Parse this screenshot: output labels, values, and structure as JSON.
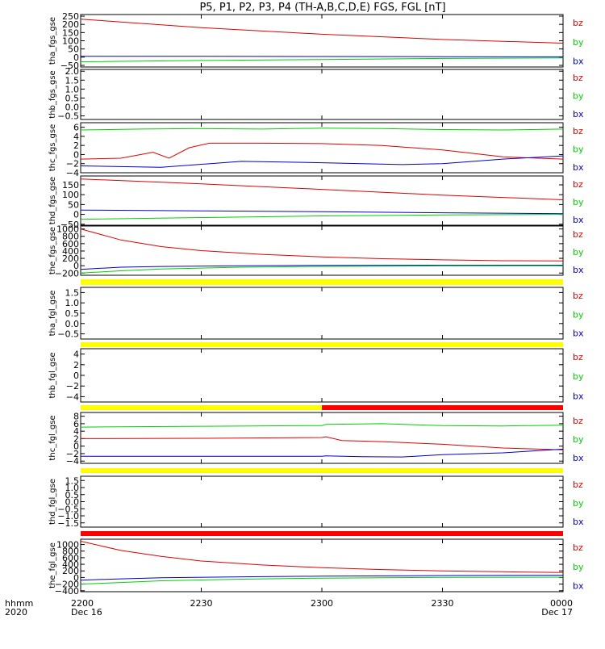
{
  "title": "P5, P1, P2, P3, P4 (TH-A,B,C,D,E) FGS, FGL [nT]",
  "colors": {
    "bz": "#e00000",
    "by": "#00d000",
    "bx": "#0000d0",
    "bar_yellow": "#ffff00",
    "bar_red": "#ff0000",
    "axis": "#000000"
  },
  "x_axis": {
    "row_label": "hhmm",
    "year_label": "2020",
    "ticks": [
      {
        "value": 0,
        "label": "2200",
        "sublabel": "Dec 16"
      },
      {
        "value": 30,
        "label": "2230",
        "sublabel": ""
      },
      {
        "value": 60,
        "label": "2300",
        "sublabel": ""
      },
      {
        "value": 90,
        "label": "2330",
        "sublabel": ""
      },
      {
        "value": 120,
        "label": "0000",
        "sublabel": "Dec 17"
      }
    ],
    "range_minutes": [
      0,
      120
    ]
  },
  "chart_data": [
    {
      "type": "line",
      "panel": "tha_fgs_gse",
      "ylabel": "tha_fgs_gse",
      "ylim": [
        -60,
        260
      ],
      "ticks": [
        {
          "v": 250,
          "l": "250"
        },
        {
          "v": 200,
          "l": "200"
        },
        {
          "v": 150,
          "l": "150"
        },
        {
          "v": 100,
          "l": "100"
        },
        {
          "v": 50,
          "l": "50"
        },
        {
          "v": 0,
          "l": "0"
        },
        {
          "v": -50,
          "l": "−50"
        }
      ],
      "legend": [
        "bz",
        "by",
        "bx"
      ],
      "series": [
        {
          "name": "bz",
          "x": [
            0,
            30,
            60,
            90,
            120
          ],
          "y": [
            232,
            180,
            140,
            108,
            85
          ]
        },
        {
          "name": "bx",
          "x": [
            0,
            30,
            60,
            90,
            120
          ],
          "y": [
            5,
            5,
            4,
            3,
            2
          ]
        },
        {
          "name": "by",
          "x": [
            0,
            30,
            60,
            90,
            120
          ],
          "y": [
            -28,
            -20,
            -14,
            -8,
            -5
          ]
        }
      ]
    },
    {
      "type": "line",
      "panel": "thb_fgs_gse",
      "ylabel": "thb_fgs_gse",
      "ylim": [
        -0.7,
        2.1
      ],
      "ticks": [
        {
          "v": 2.0,
          "l": "2.0"
        },
        {
          "v": 1.5,
          "l": "1.5"
        },
        {
          "v": 1.0,
          "l": "1.0"
        },
        {
          "v": 0.5,
          "l": "0.5"
        },
        {
          "v": 0.0,
          "l": "0.0"
        },
        {
          "v": -0.5,
          "l": "−0.5"
        }
      ],
      "legend": [
        "bz",
        "by",
        "bx"
      ],
      "series": []
    },
    {
      "type": "line",
      "panel": "thc_fgs_gse",
      "ylabel": "thc_fgs_gse",
      "ylim": [
        -4,
        7
      ],
      "ticks": [
        {
          "v": 6,
          "l": "6"
        },
        {
          "v": 4,
          "l": "4"
        },
        {
          "v": 2,
          "l": "2"
        },
        {
          "v": 0,
          "l": "0"
        },
        {
          "v": -2,
          "l": "−2"
        },
        {
          "v": -4,
          "l": "−4"
        }
      ],
      "legend": [
        "bz",
        "by",
        "bx"
      ],
      "series": [
        {
          "name": "by",
          "x": [
            0,
            15,
            30,
            45,
            60,
            75,
            90,
            105,
            120
          ],
          "y": [
            5.4,
            5.6,
            5.7,
            5.6,
            5.8,
            5.7,
            5.5,
            5.4,
            5.6
          ]
        },
        {
          "name": "bz",
          "x": [
            0,
            10,
            18,
            22,
            27,
            32,
            45,
            60,
            75,
            90,
            105,
            120
          ],
          "y": [
            -1,
            -0.8,
            0.5,
            -0.8,
            1.5,
            2.5,
            2.5,
            2.4,
            2,
            1,
            -0.5,
            -1
          ]
        },
        {
          "name": "bx",
          "x": [
            0,
            20,
            40,
            60,
            80,
            90,
            105,
            120
          ],
          "y": [
            -2.5,
            -2.8,
            -1.5,
            -1.8,
            -2.2,
            -2,
            -1,
            -0.3
          ]
        }
      ]
    },
    {
      "type": "line",
      "panel": "thd_fgs_gse",
      "ylabel": "thd_fgs_gse",
      "ylim": [
        -55,
        195
      ],
      "ticks": [
        {
          "v": 150,
          "l": "150"
        },
        {
          "v": 100,
          "l": "100"
        },
        {
          "v": 50,
          "l": "50"
        },
        {
          "v": 0,
          "l": "0"
        },
        {
          "v": -50,
          "l": "−50"
        }
      ],
      "legend": [
        "bz",
        "by",
        "bx"
      ],
      "series": [
        {
          "name": "bz",
          "x": [
            0,
            30,
            60,
            90,
            120
          ],
          "y": [
            180,
            155,
            127,
            98,
            74
          ]
        },
        {
          "name": "bx",
          "x": [
            0,
            30,
            60,
            90,
            120
          ],
          "y": [
            22,
            18,
            14,
            8,
            3
          ]
        },
        {
          "name": "by",
          "x": [
            0,
            30,
            60,
            90,
            120
          ],
          "y": [
            -25,
            -16,
            -8,
            -3,
            0
          ]
        }
      ]
    },
    {
      "type": "line",
      "panel": "the_fgs_gse",
      "ylabel": "the_fgs_gse",
      "ylim": [
        -260,
        1080
      ],
      "ticks": [
        {
          "v": 1000,
          "l": "1000"
        },
        {
          "v": 800,
          "l": "800"
        },
        {
          "v": 600,
          "l": "600"
        },
        {
          "v": 400,
          "l": "400"
        },
        {
          "v": 200,
          "l": "200"
        },
        {
          "v": 0,
          "l": "0"
        },
        {
          "v": -200,
          "l": "−200"
        }
      ],
      "legend": [
        "bz",
        "by",
        "bx"
      ],
      "series": [
        {
          "name": "bz",
          "x": [
            0,
            10,
            20,
            30,
            45,
            60,
            75,
            90,
            105,
            120
          ],
          "y": [
            1000,
            700,
            520,
            410,
            310,
            240,
            190,
            160,
            135,
            130
          ]
        },
        {
          "name": "bx",
          "x": [
            0,
            10,
            20,
            40,
            60,
            90,
            120
          ],
          "y": [
            -100,
            -40,
            -20,
            0,
            10,
            12,
            15
          ]
        },
        {
          "name": "by",
          "x": [
            0,
            10,
            20,
            40,
            60,
            90,
            120
          ],
          "y": [
            -200,
            -140,
            -90,
            -40,
            -20,
            -5,
            0
          ]
        }
      ]
    },
    {
      "type": "line",
      "panel": "tha_fgl_gse",
      "ylabel": "tha_fgl_gse",
      "ylim": [
        -0.75,
        1.75
      ],
      "ticks": [
        {
          "v": 1.5,
          "l": "1.5"
        },
        {
          "v": 1.0,
          "l": "1.0"
        },
        {
          "v": 0.5,
          "l": "0.5"
        },
        {
          "v": 0.0,
          "l": "0.0"
        },
        {
          "v": -0.5,
          "l": "−0.5"
        }
      ],
      "legend": [
        "bz",
        "by",
        "bx"
      ],
      "series": []
    },
    {
      "type": "line",
      "panel": "thb_fgl_gse",
      "ylabel": "thb_fgl_gse",
      "ylim": [
        -5,
        5
      ],
      "ticks": [
        {
          "v": 4,
          "l": "4"
        },
        {
          "v": 2,
          "l": "2"
        },
        {
          "v": 0,
          "l": "0"
        },
        {
          "v": -2,
          "l": "−2"
        },
        {
          "v": -4,
          "l": "−4"
        }
      ],
      "legend": [
        "bz",
        "by",
        "bx"
      ],
      "series": []
    },
    {
      "type": "line",
      "panel": "thc_fgl_gse",
      "ylabel": "thc_fgl_gse",
      "ylim": [
        -4.6,
        9
      ],
      "ticks": [
        {
          "v": 8,
          "l": "8"
        },
        {
          "v": 6,
          "l": "6"
        },
        {
          "v": 4,
          "l": "4"
        },
        {
          "v": 2,
          "l": "2"
        },
        {
          "v": 0,
          "l": "0"
        },
        {
          "v": -2,
          "l": "−2"
        },
        {
          "v": -4,
          "l": "−4"
        }
      ],
      "legend": [
        "bz",
        "by",
        "bx"
      ],
      "series": [
        {
          "name": "by",
          "x": [
            0,
            30,
            60,
            61,
            75,
            90,
            105,
            120
          ],
          "y": [
            5.1,
            5.3,
            5.5,
            5.8,
            6,
            5.5,
            5.4,
            5.6
          ]
        },
        {
          "name": "bz",
          "x": [
            0,
            30,
            60,
            61,
            65,
            75,
            90,
            105,
            120
          ],
          "y": [
            2.0,
            2.1,
            2.3,
            2.5,
            1.5,
            1.2,
            0.5,
            -0.5,
            -1
          ]
        },
        {
          "name": "bx",
          "x": [
            0,
            30,
            60,
            61,
            70,
            80,
            90,
            105,
            120
          ],
          "y": [
            -2.7,
            -2.7,
            -2.7,
            -2.6,
            -2.8,
            -2.9,
            -2.3,
            -1.8,
            -0.8
          ]
        }
      ]
    },
    {
      "type": "line",
      "panel": "thd_fgl_gse",
      "ylabel": "thd_fgl_gse",
      "ylim": [
        -1.8,
        1.8
      ],
      "ticks": [
        {
          "v": 1.5,
          "l": "1.5"
        },
        {
          "v": 1.0,
          "l": "1.0"
        },
        {
          "v": 0.5,
          "l": "0.5"
        },
        {
          "v": 0.0,
          "l": "0.0"
        },
        {
          "v": -0.5,
          "l": "−0.5"
        },
        {
          "v": -1.0,
          "l": "−1.0"
        },
        {
          "v": -1.5,
          "l": "−1.5"
        }
      ],
      "legend": [
        "bz",
        "by",
        "bx"
      ],
      "series": []
    },
    {
      "type": "line",
      "panel": "the_fgl_gse",
      "ylabel": "the_fgl_gse",
      "ylim": [
        -430,
        1160
      ],
      "ticks": [
        {
          "v": 1000,
          "l": "1000"
        },
        {
          "v": 800,
          "l": "800"
        },
        {
          "v": 600,
          "l": "600"
        },
        {
          "v": 400,
          "l": "400"
        },
        {
          "v": 200,
          "l": "200"
        },
        {
          "v": 0,
          "l": "0"
        },
        {
          "v": -200,
          "l": "−200"
        },
        {
          "v": -400,
          "l": "−400"
        }
      ],
      "legend": [
        "bz",
        "by",
        "bx"
      ],
      "series": [
        {
          "name": "bz",
          "x": [
            0,
            10,
            20,
            30,
            45,
            60,
            75,
            90,
            105,
            120
          ],
          "y": [
            1100,
            820,
            640,
            500,
            380,
            300,
            240,
            200,
            175,
            150
          ]
        },
        {
          "name": "bx",
          "x": [
            0,
            10,
            20,
            40,
            60,
            90,
            120
          ],
          "y": [
            -80,
            -40,
            -10,
            20,
            40,
            60,
            70
          ]
        },
        {
          "name": "by",
          "x": [
            0,
            10,
            20,
            40,
            60,
            90,
            120
          ],
          "y": [
            -200,
            -150,
            -100,
            -50,
            -20,
            5,
            10
          ]
        }
      ]
    }
  ],
  "status_bars": [
    {
      "name": "bar-1",
      "segments": [
        {
          "from": 0,
          "to": 120,
          "color": "bar_yellow"
        }
      ]
    },
    {
      "name": "bar-2",
      "segments": [
        {
          "from": 0,
          "to": 120,
          "color": "bar_yellow"
        }
      ]
    },
    {
      "name": "bar-3",
      "segments": [
        {
          "from": 0,
          "to": 60,
          "color": "bar_yellow"
        },
        {
          "from": 60,
          "to": 120,
          "color": "bar_red"
        }
      ]
    },
    {
      "name": "bar-4",
      "segments": [
        {
          "from": 0,
          "to": 120,
          "color": "bar_yellow"
        }
      ]
    },
    {
      "name": "bar-5",
      "segments": [
        {
          "from": 0,
          "to": 120,
          "color": "bar_red"
        }
      ]
    }
  ]
}
